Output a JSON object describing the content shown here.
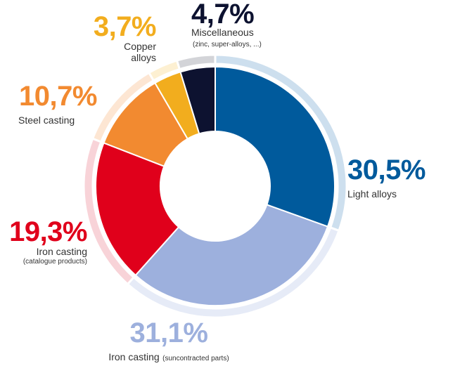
{
  "chart_data": {
    "type": "pie",
    "slices": [
      {
        "key": "light",
        "value": 30.5,
        "label": "30,5%",
        "name": "Light alloys",
        "sub": "",
        "color": "#005a9c",
        "ring": "#cddfee"
      },
      {
        "key": "iron_sub",
        "value": 31.1,
        "label": "31,1%",
        "name": "Iron casting",
        "sub": "(suncontracted parts)",
        "color": "#9db0dd",
        "ring": "#e6ebf7"
      },
      {
        "key": "iron_cat",
        "value": 19.3,
        "label": "19,3%",
        "name": "Iron casting",
        "sub": "(catalogue products)",
        "color": "#e0001b",
        "ring": "#f8d3d8"
      },
      {
        "key": "steel",
        "value": 10.7,
        "label": "10,7%",
        "name": "Steel casting",
        "sub": "",
        "color": "#f28a30",
        "ring": "#fde6d3"
      },
      {
        "key": "copper",
        "value": 3.7,
        "label": "3,7%",
        "name": "Copper",
        "name2": "alloys",
        "sub": "",
        "color": "#f2ad1e",
        "ring": "#fdf0d2"
      },
      {
        "key": "misc",
        "value": 4.7,
        "label": "4,7%",
        "name": "Miscellaneous",
        "sub": "(zinc, super-alloys, ...)",
        "color": "#0d1230",
        "ring": "#d3d4d8"
      }
    ]
  }
}
